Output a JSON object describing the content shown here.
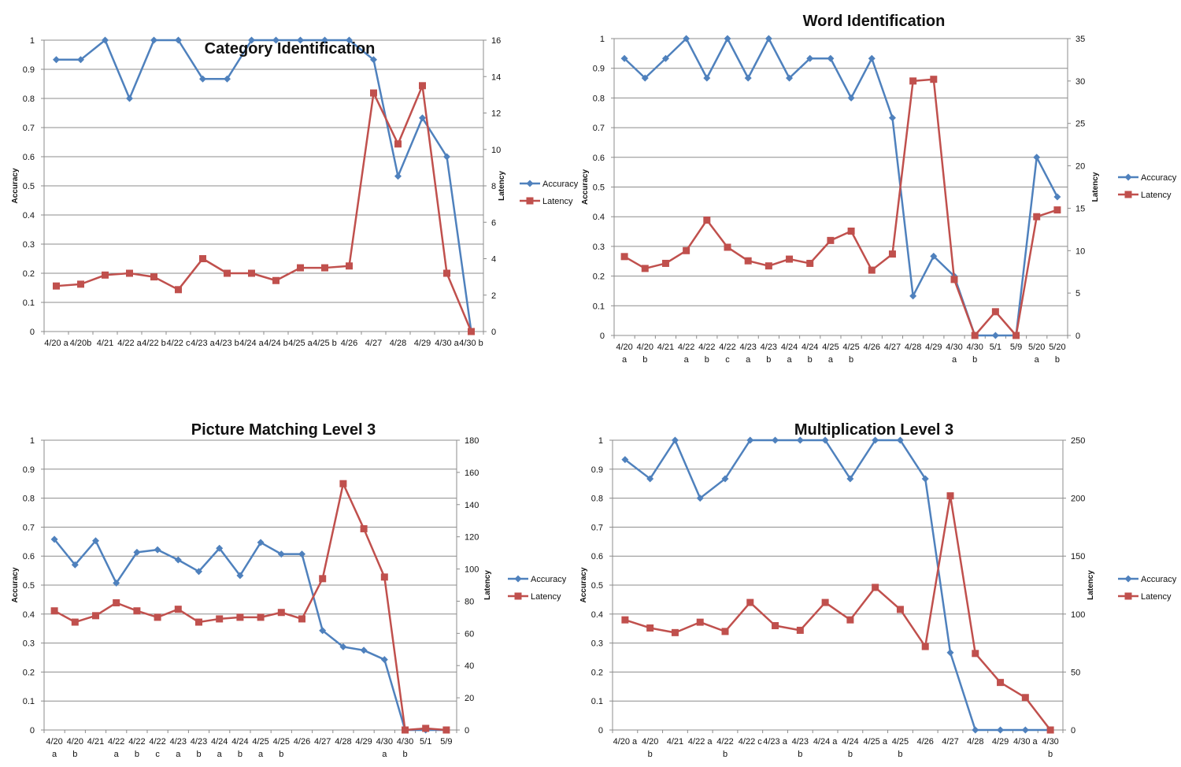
{
  "chart_data": [
    {
      "type": "line",
      "title": "Category Identification",
      "ylabel": "Accuracy",
      "y2label": "Latency",
      "ylim": [
        0,
        1
      ],
      "y2lim": [
        0,
        16
      ],
      "yticks": [
        "0",
        "0.1",
        "0.2",
        "0.3",
        "0.4",
        "0.5",
        "0.6",
        "0.7",
        "0.8",
        "0.9",
        "1"
      ],
      "y2ticks": [
        "0",
        "2",
        "4",
        "6",
        "8",
        "10",
        "12",
        "14",
        "16"
      ],
      "categories": [
        [
          "4/20 a"
        ],
        [
          "4/20b"
        ],
        [
          "4/21"
        ],
        [
          "4/22 a"
        ],
        [
          "4/22 b"
        ],
        [
          "4/22 c"
        ],
        [
          "4/23 a"
        ],
        [
          "4/23 b"
        ],
        [
          "4/24 a"
        ],
        [
          "4/24 b"
        ],
        [
          "4/25 a"
        ],
        [
          "4/25 b"
        ],
        [
          "4/26"
        ],
        [
          "4/27"
        ],
        [
          "4/28"
        ],
        [
          "4/29"
        ],
        [
          "4/30 a"
        ],
        [
          "4/30 b"
        ]
      ],
      "series": [
        {
          "name": "Accuracy",
          "axis": "left",
          "color": "#4F81BD",
          "marker": "diamond",
          "values": [
            0.933,
            0.933,
            1.0,
            0.8,
            1.0,
            1.0,
            0.867,
            0.867,
            1.0,
            1.0,
            1.0,
            1.0,
            1.0,
            0.933,
            0.533,
            0.733,
            0.6,
            0.0
          ]
        },
        {
          "name": "Latency",
          "axis": "right",
          "color": "#C0504D",
          "marker": "square",
          "values": [
            2.5,
            2.6,
            3.1,
            3.2,
            3.0,
            2.3,
            4.0,
            3.2,
            3.2,
            2.8,
            3.5,
            3.5,
            3.6,
            13.1,
            10.3,
            13.5,
            3.2,
            0.0
          ]
        }
      ],
      "legend": "right"
    },
    {
      "type": "line",
      "title": "Word Identification",
      "ylabel": "Accuracy",
      "y2label": "Latency",
      "ylim": [
        0,
        1
      ],
      "y2lim": [
        0,
        35
      ],
      "yticks": [
        "0",
        "0.1",
        "0.2",
        "0.3",
        "0.4",
        "0.5",
        "0.6",
        "0.7",
        "0.8",
        "0.9",
        "1"
      ],
      "y2ticks": [
        "0",
        "5",
        "10",
        "15",
        "20",
        "25",
        "30",
        "35"
      ],
      "categories": [
        [
          "4/20",
          "a"
        ],
        [
          "4/20",
          "b"
        ],
        [
          "4/21",
          ""
        ],
        [
          "4/22",
          "a"
        ],
        [
          "4/22",
          "b"
        ],
        [
          "4/22",
          "c"
        ],
        [
          "4/23",
          "a"
        ],
        [
          "4/23",
          "b"
        ],
        [
          "4/24",
          "a"
        ],
        [
          "4/24",
          "b"
        ],
        [
          "4/25",
          "a"
        ],
        [
          "4/25",
          "b"
        ],
        [
          "4/26",
          ""
        ],
        [
          "4/27",
          ""
        ],
        [
          "4/28",
          ""
        ],
        [
          "4/29",
          ""
        ],
        [
          "4/30",
          "a"
        ],
        [
          "4/30",
          "b"
        ],
        [
          "5/1",
          ""
        ],
        [
          "5/9",
          ""
        ],
        [
          "5/20",
          "a"
        ],
        [
          "5/20",
          "b"
        ]
      ],
      "series": [
        {
          "name": "Accuracy",
          "axis": "left",
          "color": "#4F81BD",
          "marker": "diamond",
          "values": [
            0.933,
            0.867,
            0.933,
            1.0,
            0.867,
            1.0,
            0.867,
            1.0,
            0.867,
            0.933,
            0.933,
            0.8,
            0.933,
            0.733,
            0.133,
            0.267,
            0.2,
            0.0,
            0.0,
            0.0,
            0.6,
            0.467
          ]
        },
        {
          "name": "Latency",
          "axis": "right",
          "color": "#C0504D",
          "marker": "square",
          "values": [
            9.3,
            7.9,
            8.5,
            10.0,
            13.6,
            10.4,
            8.8,
            8.2,
            9.0,
            8.5,
            11.2,
            12.3,
            7.7,
            9.6,
            30.0,
            30.2,
            6.6,
            0.0,
            2.8,
            0.0,
            14.0,
            14.8
          ]
        }
      ],
      "legend": "right"
    },
    {
      "type": "line",
      "title": "Picture Matching Level 3",
      "ylabel": "Accuracy",
      "y2label": "Latency",
      "ylim": [
        0,
        1
      ],
      "y2lim": [
        0,
        180
      ],
      "yticks": [
        "0",
        "0.1",
        "0.2",
        "0.3",
        "0.4",
        "0.5",
        "0.6",
        "0.7",
        "0.8",
        "0.9",
        "1"
      ],
      "y2ticks": [
        "0",
        "20",
        "40",
        "60",
        "80",
        "100",
        "120",
        "140",
        "160",
        "180"
      ],
      "categories": [
        [
          "4/20",
          "a"
        ],
        [
          "4/20",
          "b"
        ],
        [
          "4/21",
          ""
        ],
        [
          "4/22",
          "a"
        ],
        [
          "4/22",
          "b"
        ],
        [
          "4/22",
          "c"
        ],
        [
          "4/23",
          "a"
        ],
        [
          "4/23",
          "b"
        ],
        [
          "4/24",
          "a"
        ],
        [
          "4/24",
          "b"
        ],
        [
          "4/25",
          "a"
        ],
        [
          "4/25",
          "b"
        ],
        [
          "4/26",
          ""
        ],
        [
          "4/27",
          ""
        ],
        [
          "4/28",
          ""
        ],
        [
          "4/29",
          ""
        ],
        [
          "4/30",
          "a"
        ],
        [
          "4/30",
          "b"
        ],
        [
          "5/1",
          ""
        ],
        [
          "5/9",
          ""
        ]
      ],
      "series": [
        {
          "name": "Accuracy",
          "axis": "left",
          "color": "#4F81BD",
          "marker": "diamond",
          "values": [
            0.658,
            0.57,
            0.653,
            0.507,
            0.613,
            0.622,
            0.587,
            0.547,
            0.627,
            0.533,
            0.647,
            0.607,
            0.607,
            0.343,
            0.287,
            0.275,
            0.243,
            0.0,
            0.0,
            0.0
          ]
        },
        {
          "name": "Latency",
          "axis": "right",
          "color": "#C0504D",
          "marker": "square",
          "values": [
            74,
            67,
            71,
            79,
            74,
            70,
            75,
            67,
            69,
            70,
            70,
            73,
            69,
            94,
            153,
            125,
            95,
            0,
            1,
            0
          ]
        }
      ],
      "legend": "right"
    },
    {
      "type": "line",
      "title": "Multiplication Level 3",
      "ylabel": "Accuracy",
      "y2label": "Latency",
      "ylim": [
        0,
        1
      ],
      "y2lim": [
        0,
        250
      ],
      "yticks": [
        "0",
        "0.1",
        "0.2",
        "0.3",
        "0.4",
        "0.5",
        "0.6",
        "0.7",
        "0.8",
        "0.9",
        "1"
      ],
      "y2ticks": [
        "0",
        "50",
        "100",
        "150",
        "200",
        "250"
      ],
      "categories": [
        [
          "4/20 a",
          ""
        ],
        [
          "4/20",
          "b"
        ],
        [
          "4/21",
          ""
        ],
        [
          "4/22 a",
          ""
        ],
        [
          "4/22",
          "b"
        ],
        [
          "4/22 c",
          ""
        ],
        [
          "4/23 a",
          ""
        ],
        [
          "4/23",
          "b"
        ],
        [
          "4/24 a",
          ""
        ],
        [
          "4/24",
          "b"
        ],
        [
          "4/25 a",
          ""
        ],
        [
          "4/25",
          "b"
        ],
        [
          "4/26",
          ""
        ],
        [
          "4/27",
          ""
        ],
        [
          "4/28",
          ""
        ],
        [
          "4/29",
          ""
        ],
        [
          "4/30 a",
          ""
        ],
        [
          "4/30",
          "b"
        ]
      ],
      "series": [
        {
          "name": "Accuracy",
          "axis": "left",
          "color": "#4F81BD",
          "marker": "diamond",
          "values": [
            0.933,
            0.867,
            1.0,
            0.8,
            0.867,
            1.0,
            1.0,
            1.0,
            1.0,
            0.867,
            1.0,
            1.0,
            0.867,
            0.267,
            0.0,
            0.0,
            0.0,
            0.0
          ]
        },
        {
          "name": "Latency",
          "axis": "right",
          "color": "#C0504D",
          "marker": "square",
          "values": [
            95,
            88,
            84,
            93,
            85,
            110,
            90,
            86,
            110,
            95,
            123,
            104,
            72,
            202,
            66,
            41,
            28,
            0
          ]
        }
      ],
      "legend": "right"
    }
  ]
}
